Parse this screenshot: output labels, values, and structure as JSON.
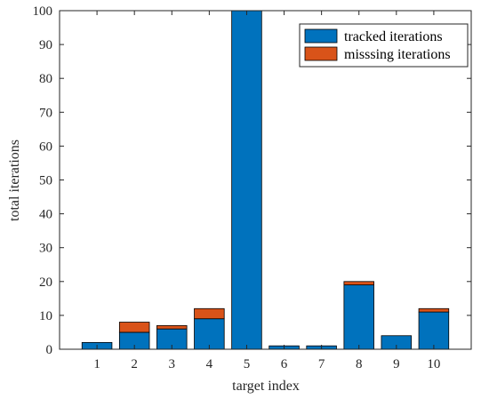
{
  "chart_data": {
    "type": "bar",
    "stacked": true,
    "categories": [
      "1",
      "2",
      "3",
      "4",
      "5",
      "6",
      "7",
      "8",
      "9",
      "10"
    ],
    "series": [
      {
        "name": "tracked iterations",
        "values": [
          2,
          5,
          6,
          9,
          100,
          1,
          1,
          19,
          4,
          11
        ],
        "color": "#0072BD"
      },
      {
        "name": "misssing iterations",
        "values": [
          0,
          3,
          1,
          3,
          0,
          0,
          0,
          1,
          0,
          1
        ],
        "color": "#D95319"
      }
    ],
    "title": "",
    "xlabel": "target index",
    "ylabel": "total iterations",
    "ylim": [
      0,
      100
    ],
    "yticks": [
      "0",
      "10",
      "20",
      "30",
      "40",
      "50",
      "60",
      "70",
      "80",
      "90",
      "100"
    ],
    "grid": false,
    "legend_position": "top-right"
  }
}
